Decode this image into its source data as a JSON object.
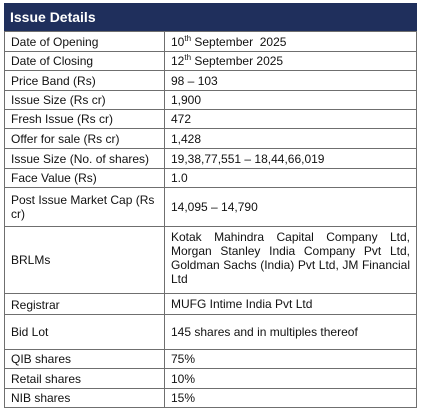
{
  "header": {
    "title": "Issue Details"
  },
  "table": {
    "rows": [
      [
        "Date of Opening",
        {
          "main": "10",
          "sup": "th",
          "rest": " September  2025"
        }
      ],
      [
        "Date of Closing",
        {
          "main": "12",
          "sup": "th",
          "rest": " September 2025"
        }
      ],
      [
        "Price Band (Rs)",
        "98 – 103"
      ],
      [
        "Issue Size (Rs cr)",
        "1,900"
      ],
      [
        "Fresh Issue (Rs cr)",
        "472"
      ],
      [
        "Offer for sale (Rs cr)",
        "1,428"
      ],
      [
        "Issue Size (No. of shares)",
        "19,38,77,551 – 18,44,66,019"
      ],
      [
        "Face Value (Rs)",
        "1.0"
      ],
      [
        "Post Issue Market Cap (Rs cr)",
        "14,095 – 14,790"
      ],
      [
        "BRLMs",
        "Kotak Mahindra Capital Company Ltd, Morgan Stanley India Company Pvt Ltd, Goldman Sachs (India) Pvt Ltd, JM Financial Ltd"
      ],
      [
        "Registrar",
        "MUFG Intime India Pvt Ltd"
      ],
      [
        "Bid Lot",
        "145 shares and in multiples thereof"
      ],
      [
        "QIB shares",
        "75%"
      ],
      [
        "Retail shares",
        "10%"
      ],
      [
        "NIB shares",
        "15%"
      ]
    ]
  }
}
